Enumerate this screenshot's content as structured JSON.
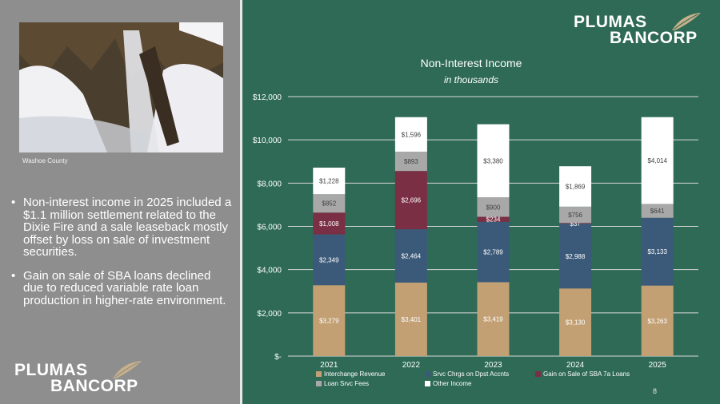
{
  "sidebar": {
    "photo_caption": "Washoe County",
    "bullets": [
      "Non-interest income in 2025 included a $1.1 million settlement related to the Dixie Fire and a sale leaseback mostly offset by loss on sale of investment securities.",
      "Gain on sale of SBA loans declined due to reduced variable rate loan production in higher-rate environment."
    ],
    "bullet_glyph": "•"
  },
  "logo": {
    "line1": "PLUMAS",
    "line2": "BANCORP"
  },
  "page_number": "8",
  "colors": {
    "background_green": "#2e6a55",
    "sidebar_gray": "#8e8e8e",
    "interchange": "#c2a074",
    "srvc_chrgs": "#3b5a79",
    "sba_gain": "#7b2f45",
    "loan_srvc": "#a8a8a8",
    "other_income": "#ffffff",
    "leaf": "#c7b08a"
  },
  "chart_data": {
    "type": "bar",
    "stacked": true,
    "title": "Non-Interest Income",
    "subtitle": "in thousands",
    "categories": [
      "2021",
      "2022",
      "2023",
      "2024",
      "2025"
    ],
    "ylim": [
      0,
      12000
    ],
    "yticks": [
      0,
      2000,
      4000,
      6000,
      8000,
      10000,
      12000
    ],
    "ytick_labels": [
      "$-",
      "$2,000",
      "$4,000",
      "$6,000",
      "$8,000",
      "$10,000",
      "$12,000"
    ],
    "grid": true,
    "series": [
      {
        "name": "Interchange Revenue",
        "color": "#c2a074",
        "values": [
          3279,
          3401,
          3419,
          3130,
          3263
        ],
        "labels": [
          "$3,279",
          "$3,401",
          "$3,419",
          "$3,130",
          "$3,263"
        ]
      },
      {
        "name": "Srvc Chrgs on Dpst Accnts",
        "color": "#3b5a79",
        "values": [
          2349,
          2464,
          2789,
          2988,
          3133
        ],
        "labels": [
          "$2,349",
          "$2,464",
          "$2,789",
          "$2,988",
          "$3,133"
        ]
      },
      {
        "name": "Gain on Sale of SBA 7a Loans",
        "color": "#7b2f45",
        "values": [
          1008,
          2696,
          234,
          37,
          0
        ],
        "labels": [
          "$1,008",
          "$2,696",
          "$234",
          "$37",
          ""
        ]
      },
      {
        "name": "Loan Srvc Fees",
        "color": "#a8a8a8",
        "values": [
          852,
          893,
          900,
          756,
          641
        ],
        "labels": [
          "$852",
          "$893",
          "$900",
          "$756",
          "$641"
        ]
      },
      {
        "name": "Other Income",
        "color": "#ffffff",
        "values": [
          1228,
          1596,
          3380,
          1869,
          4014
        ],
        "labels": [
          "$1,228",
          "$1,596",
          "$3,380",
          "$1,869",
          "$4,014"
        ]
      }
    ],
    "legend_position": "bottom"
  }
}
